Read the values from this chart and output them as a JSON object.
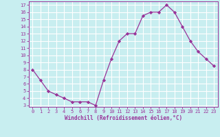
{
  "x": [
    0,
    1,
    2,
    3,
    4,
    5,
    6,
    7,
    8,
    9,
    10,
    11,
    12,
    13,
    14,
    15,
    16,
    17,
    18,
    19,
    20,
    21,
    22,
    23
  ],
  "y": [
    8,
    6.5,
    5,
    4.5,
    4,
    3.5,
    3.5,
    3.5,
    3,
    6.5,
    9.5,
    12,
    13,
    13,
    15.5,
    16,
    16,
    17,
    16,
    14,
    12,
    10.5,
    9.5,
    8.5
  ],
  "line_color": "#993399",
  "marker": "D",
  "marker_size": 2.2,
  "bg_color": "#c8eef0",
  "grid_color": "#ffffff",
  "xlabel": "Windchill (Refroidissement éolien,°C)",
  "xlabel_color": "#993399",
  "tick_color": "#993399",
  "ylim": [
    2.8,
    17.5
  ],
  "xlim": [
    -0.5,
    23.5
  ],
  "yticks": [
    3,
    4,
    5,
    6,
    7,
    8,
    9,
    10,
    11,
    12,
    13,
    14,
    15,
    16,
    17
  ],
  "xticks": [
    0,
    1,
    2,
    3,
    4,
    5,
    6,
    7,
    8,
    9,
    10,
    11,
    12,
    13,
    14,
    15,
    16,
    17,
    18,
    19,
    20,
    21,
    22,
    23
  ],
  "spine_color": "#993399"
}
